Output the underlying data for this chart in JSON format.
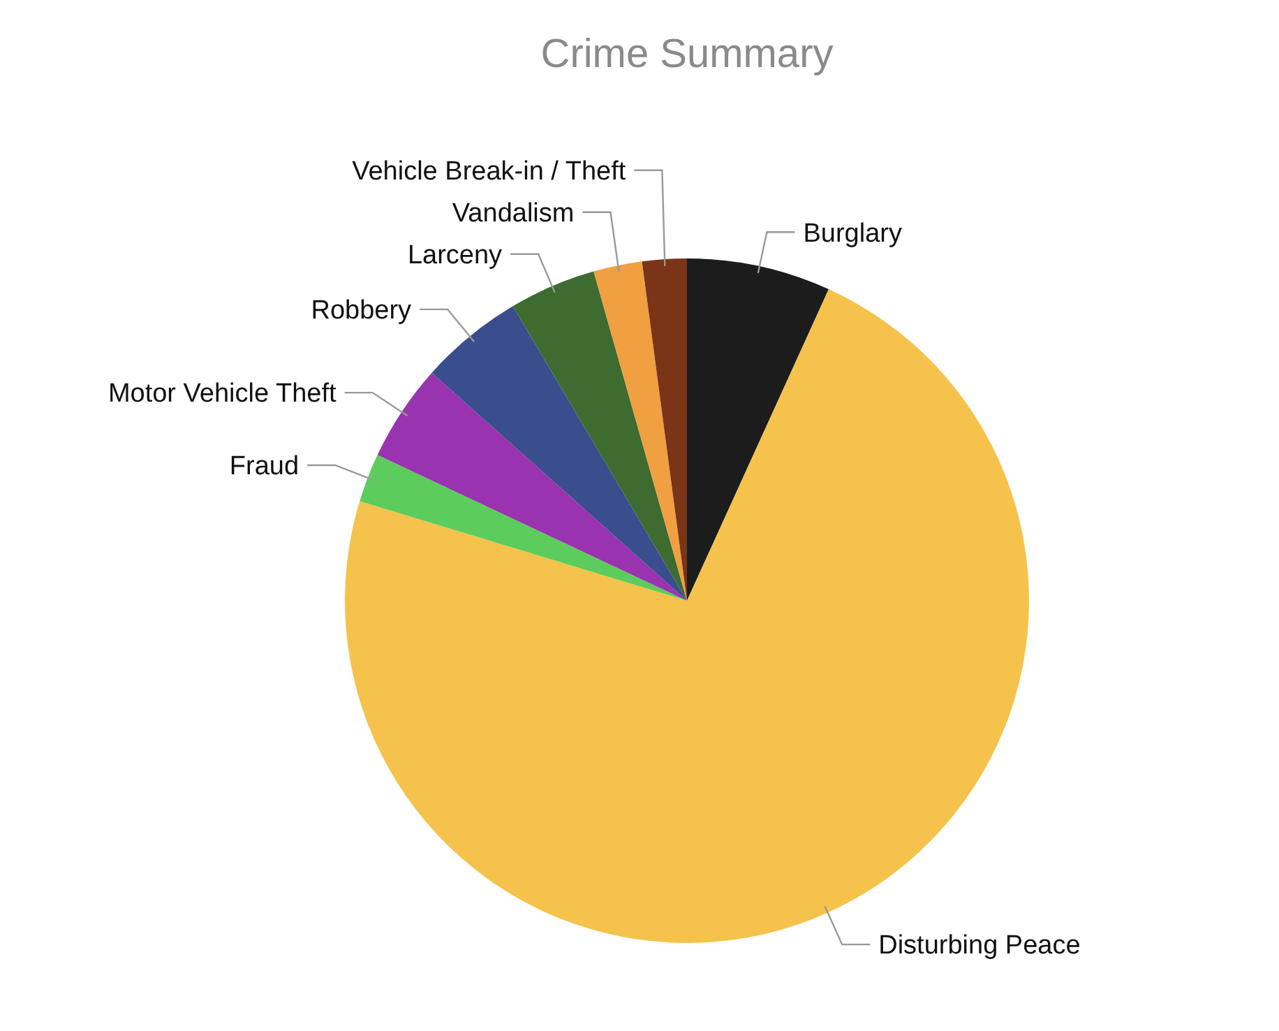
{
  "chart_data": {
    "type": "pie",
    "title": "Crime Summary",
    "categories": [
      "Burglary",
      "Disturbing Peace",
      "Fraud",
      "Motor Vehicle Theft",
      "Robbery",
      "Larceny",
      "Vandalism",
      "Vehicle Break-in / Theft"
    ],
    "values": [
      6.8,
      72.9,
      2.3,
      4.6,
      4.9,
      4.1,
      2.3,
      2.1
    ],
    "colors": [
      "#1c1c1c",
      "#f5c24c",
      "#5ccc5c",
      "#9933b0",
      "#3a4d8c",
      "#3d6b30",
      "#f0a040",
      "#7a3418"
    ],
    "legend": false
  }
}
